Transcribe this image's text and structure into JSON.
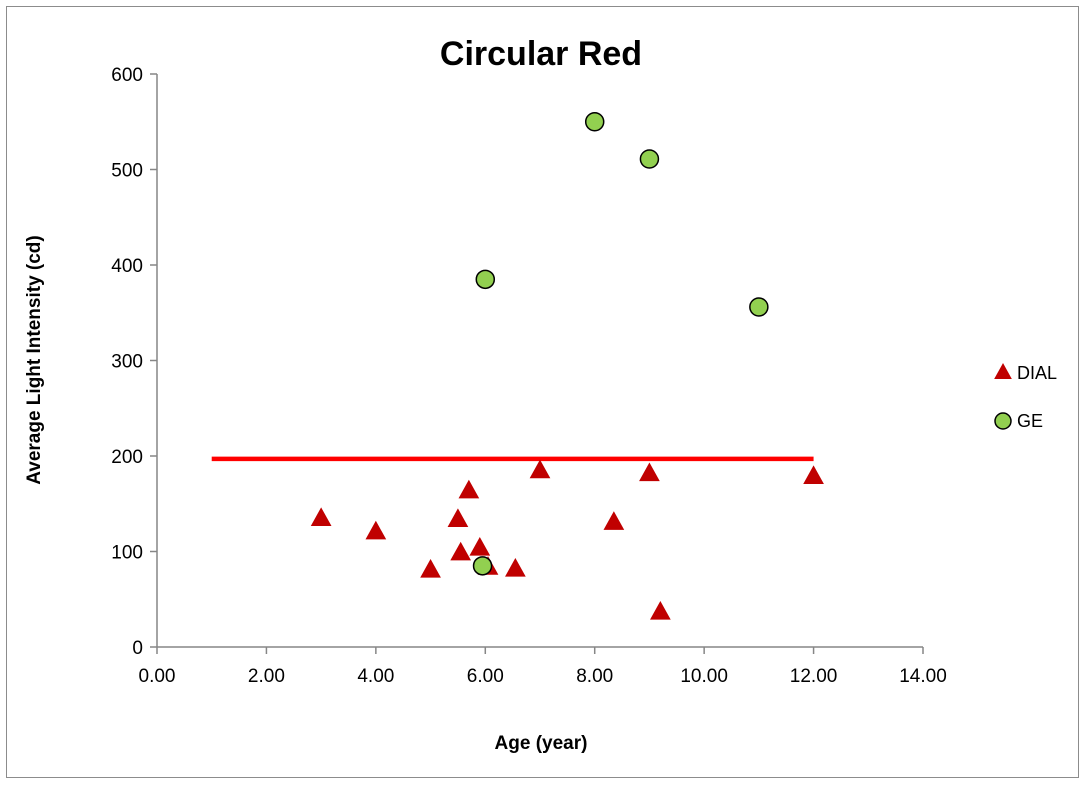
{
  "chart_data": {
    "type": "scatter",
    "title": "Circular Red",
    "xlabel": "Age (year)",
    "ylabel": "Average Light Intensity (cd)",
    "xlim": [
      0,
      14
    ],
    "ylim": [
      0,
      600
    ],
    "x_ticks": [
      "0.00",
      "2.00",
      "4.00",
      "6.00",
      "8.00",
      "10.00",
      "12.00",
      "14.00"
    ],
    "y_ticks": [
      "0",
      "100",
      "200",
      "300",
      "400",
      "500",
      "600"
    ],
    "grid": false,
    "legend_position": "right",
    "series": [
      {
        "name": "DIAL",
        "marker": "triangle",
        "color": "#c00000",
        "points": [
          [
            3.0,
            134
          ],
          [
            4.0,
            120
          ],
          [
            5.0,
            80
          ],
          [
            5.5,
            133
          ],
          [
            5.55,
            98
          ],
          [
            5.7,
            163
          ],
          [
            5.9,
            103
          ],
          [
            6.05,
            83
          ],
          [
            6.55,
            81
          ],
          [
            7.0,
            184
          ],
          [
            8.35,
            130
          ],
          [
            9.0,
            181
          ],
          [
            9.2,
            36
          ],
          [
            12.0,
            178
          ]
        ]
      },
      {
        "name": "GE",
        "marker": "circle",
        "color": "#92d050",
        "points": [
          [
            5.95,
            85
          ],
          [
            6.0,
            385
          ],
          [
            8.0,
            550
          ],
          [
            9.0,
            511
          ],
          [
            11.0,
            356
          ]
        ]
      }
    ],
    "reference_line": {
      "color": "#ff0000",
      "x": [
        1.0,
        12.0
      ],
      "y": 197
    }
  }
}
